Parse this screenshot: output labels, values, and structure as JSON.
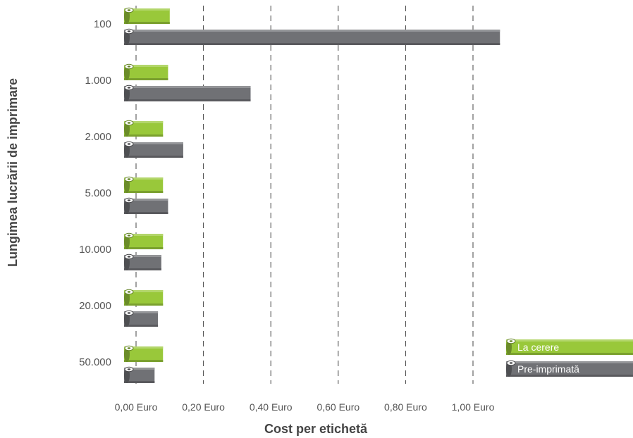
{
  "chart_data": {
    "type": "bar",
    "orientation": "horizontal",
    "categories": [
      "100",
      "1.000",
      "2.000",
      "5.000",
      "10.000",
      "20.000",
      "50.000"
    ],
    "series": [
      {
        "name": "La cerere",
        "color": "#99c83a",
        "values": [
          0.1,
          0.095,
          0.08,
          0.08,
          0.08,
          0.08,
          0.08
        ]
      },
      {
        "name": "Pre-imprimată",
        "color": "#707175",
        "values": [
          1.08,
          0.34,
          0.14,
          0.095,
          0.075,
          0.065,
          0.055
        ]
      }
    ],
    "xticks": [
      "0,00 Euro",
      "0,20 Euro",
      "0,40 Euro",
      "0,60 Euro",
      "0,80 Euro",
      "1,00 Euro"
    ],
    "xtick_values": [
      0,
      0.2,
      0.4,
      0.6,
      0.8,
      1.0
    ],
    "xlim": [
      0,
      1.08
    ],
    "xlabel": "Cost per etichetă",
    "ylabel": "Lungimea lucrării de imprimare",
    "grid": "vertical dashed",
    "legend": "bottom-right"
  }
}
